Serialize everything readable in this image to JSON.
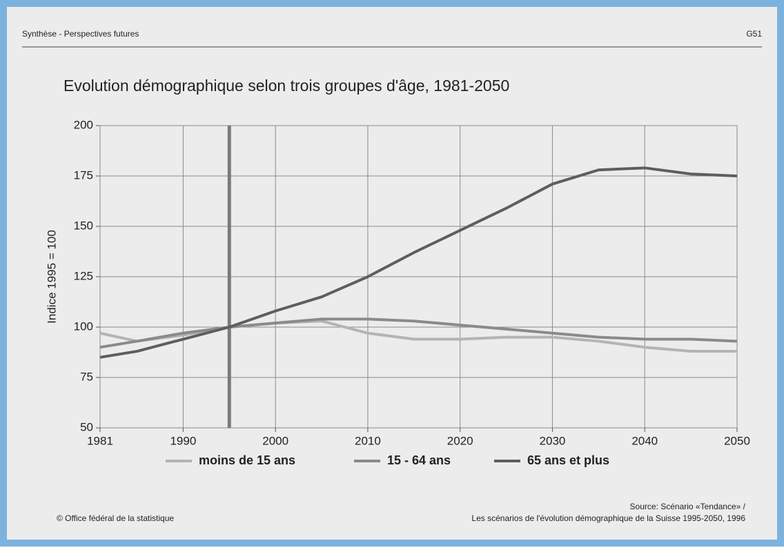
{
  "chart_data": {
    "type": "line",
    "header": "Synthèse - Perspectives futures",
    "page_number": "G51",
    "title": "Evolution démographique selon trois groupes d'âge, 1981-2050",
    "y_label": "Indice 1995 = 100",
    "xlim": [
      1981,
      2050
    ],
    "xticks": [
      1981,
      1990,
      2000,
      2010,
      2020,
      2030,
      2040,
      2050
    ],
    "ylim": [
      50,
      200
    ],
    "yticks": [
      50,
      75,
      100,
      125,
      150,
      175,
      200
    ],
    "grid": true,
    "reference_x": 1995,
    "x": [
      1981,
      1985,
      1990,
      1995,
      2000,
      2005,
      2010,
      2015,
      2020,
      2025,
      2030,
      2035,
      2040,
      2045,
      2050
    ],
    "series": [
      {
        "name": "moins de 15 ans",
        "color": "#b4b4b4",
        "values": [
          97,
          93,
          96,
          100,
          102,
          103,
          97,
          94,
          94,
          95,
          95,
          93,
          90,
          88,
          88
        ]
      },
      {
        "name": "15 - 64 ans",
        "color": "#8a8a8a",
        "values": [
          90,
          93,
          97,
          100,
          102,
          104,
          104,
          103,
          101,
          99,
          97,
          95,
          94,
          94,
          93
        ]
      },
      {
        "name": "65 ans et plus",
        "color": "#5e5e5e",
        "values": [
          85,
          88,
          94,
          100,
          108,
          115,
          125,
          137,
          148,
          159,
          171,
          178,
          179,
          176,
          175
        ]
      }
    ],
    "footer_left": "© Office fédéral de la statistique",
    "source": [
      "Source: Scénario «Tendance» /",
      "Les scénarios de l'évolution démographique de la Suisse 1995-2050, 1996"
    ]
  }
}
